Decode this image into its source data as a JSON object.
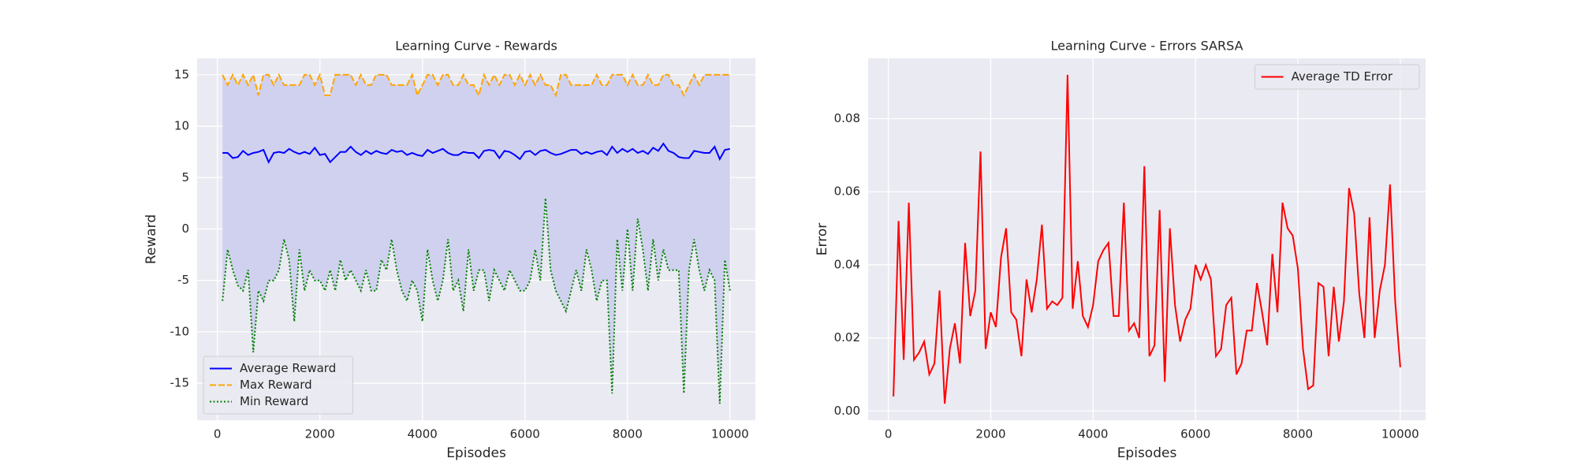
{
  "chart_data": [
    {
      "type": "line",
      "title": "Learning Curve - Rewards",
      "xlabel": "Episodes",
      "ylabel": "Reward",
      "x": [
        100,
        200,
        300,
        400,
        500,
        600,
        700,
        800,
        900,
        1000,
        1100,
        1200,
        1300,
        1400,
        1500,
        1600,
        1700,
        1800,
        1900,
        2000,
        2100,
        2200,
        2300,
        2400,
        2500,
        2600,
        2700,
        2800,
        2900,
        3000,
        3100,
        3200,
        3300,
        3400,
        3500,
        3600,
        3700,
        3800,
        3900,
        4000,
        4100,
        4200,
        4300,
        4400,
        4500,
        4600,
        4700,
        4800,
        4900,
        5000,
        5100,
        5200,
        5300,
        5400,
        5500,
        5600,
        5700,
        5800,
        5900,
        6000,
        6100,
        6200,
        6300,
        6400,
        6500,
        6600,
        6700,
        6800,
        6900,
        7000,
        7100,
        7200,
        7300,
        7400,
        7500,
        7600,
        7700,
        7800,
        7900,
        8000,
        8100,
        8200,
        8300,
        8400,
        8500,
        8600,
        8700,
        8800,
        8900,
        9000,
        9100,
        9200,
        9300,
        9400,
        9500,
        9600,
        9700,
        9800,
        9900,
        10000
      ],
      "series": [
        {
          "name": "Average Reward",
          "color": "#0000ff",
          "linestyle": "solid",
          "values": [
            7.4,
            7.4,
            6.9,
            7.0,
            7.6,
            7.2,
            7.4,
            7.5,
            7.7,
            6.5,
            7.4,
            7.5,
            7.4,
            7.8,
            7.5,
            7.3,
            7.5,
            7.3,
            7.9,
            7.2,
            7.3,
            6.5,
            7.0,
            7.5,
            7.5,
            8.0,
            7.5,
            7.2,
            7.6,
            7.3,
            7.6,
            7.4,
            7.3,
            7.7,
            7.5,
            7.6,
            7.2,
            7.4,
            7.2,
            7.1,
            7.7,
            7.4,
            7.6,
            7.8,
            7.4,
            7.2,
            7.2,
            7.5,
            7.4,
            7.4,
            6.9,
            7.6,
            7.7,
            7.6,
            6.9,
            7.6,
            7.5,
            7.2,
            6.8,
            7.5,
            7.6,
            7.2,
            7.6,
            7.7,
            7.4,
            7.2,
            7.3,
            7.5,
            7.7,
            7.7,
            7.3,
            7.5,
            7.3,
            7.5,
            7.6,
            7.2,
            8.0,
            7.4,
            7.8,
            7.5,
            7.8,
            7.4,
            7.6,
            7.3,
            7.9,
            7.6,
            8.3,
            7.6,
            7.4,
            7.0,
            6.9,
            6.9,
            7.6,
            7.5,
            7.4,
            7.4,
            8.0,
            6.8,
            7.7,
            7.8
          ]
        },
        {
          "name": "Max Reward",
          "color": "#ffa500",
          "linestyle": "dashed",
          "values": [
            15,
            14,
            15,
            14,
            15,
            14,
            15,
            13,
            15,
            15,
            14,
            15,
            14,
            14,
            14,
            14,
            15,
            15,
            14,
            15,
            13,
            13,
            15,
            15,
            15,
            15,
            14,
            15,
            14,
            14,
            15,
            15,
            15,
            14,
            14,
            14,
            14,
            15,
            13,
            14,
            15,
            15,
            14,
            15,
            15,
            14,
            14,
            15,
            14,
            14,
            13,
            15,
            14,
            15,
            14,
            15,
            15,
            14,
            15,
            14,
            15,
            14,
            15,
            14,
            14,
            13,
            15,
            15,
            14,
            14,
            14,
            14,
            14,
            15,
            14,
            14,
            15,
            15,
            15,
            14,
            15,
            14,
            14,
            15,
            14,
            14,
            15,
            15,
            14,
            14,
            13,
            14,
            15,
            14,
            15,
            15,
            15,
            15,
            15,
            15
          ]
        },
        {
          "name": "Min Reward",
          "color": "#008000",
          "linestyle": "dotted",
          "values": [
            -7,
            -2,
            -4,
            -5.5,
            -6,
            -4,
            -12,
            -6,
            -7,
            -5,
            -5,
            -4,
            -1,
            -3,
            -9,
            -2,
            -6,
            -4,
            -5,
            -5,
            -6,
            -4,
            -6,
            -3,
            -5,
            -4,
            -5,
            -6,
            -4,
            -6,
            -6,
            -3,
            -4,
            -1,
            -4,
            -6,
            -7,
            -5,
            -6,
            -9,
            -2,
            -5,
            -7,
            -5,
            -1,
            -6,
            -5,
            -8,
            -2,
            -6,
            -4,
            -4,
            -7,
            -4,
            -5,
            -6,
            -4,
            -5,
            -6,
            -6,
            -5,
            -2,
            -5,
            3,
            -4,
            -6,
            -7,
            -8,
            -6,
            -4,
            -6,
            -2,
            -4,
            -7,
            -5,
            -5,
            -16,
            -1,
            -6,
            0,
            -6,
            1,
            -2,
            -6,
            -1,
            -5,
            -2,
            -4,
            -4,
            -4,
            -16,
            -4,
            -1,
            -4,
            -6,
            -4,
            -5,
            -17,
            -3,
            -6
          ]
        }
      ],
      "fill_color": "#d0d1ef",
      "xlim": [
        -395,
        10495
      ],
      "ylim": [
        -18.6,
        16.6
      ],
      "xticks": [
        0,
        2000,
        4000,
        6000,
        8000,
        10000
      ],
      "yticks": [
        -15,
        -10,
        -5,
        0,
        5,
        10,
        15
      ],
      "grid": true,
      "legend": "lower left"
    },
    {
      "type": "line",
      "title": "Learning Curve - Errors SARSA",
      "xlabel": "Episodes",
      "ylabel": "Error",
      "x": [
        100,
        200,
        300,
        400,
        500,
        600,
        700,
        800,
        900,
        1000,
        1100,
        1200,
        1300,
        1400,
        1500,
        1600,
        1700,
        1800,
        1900,
        2000,
        2100,
        2200,
        2300,
        2400,
        2500,
        2600,
        2700,
        2800,
        2900,
        3000,
        3100,
        3200,
        3300,
        3400,
        3500,
        3600,
        3700,
        3800,
        3900,
        4000,
        4100,
        4200,
        4300,
        4400,
        4500,
        4600,
        4700,
        4800,
        4900,
        5000,
        5100,
        5200,
        5300,
        5400,
        5500,
        5600,
        5700,
        5800,
        5900,
        6000,
        6100,
        6200,
        6300,
        6400,
        6500,
        6600,
        6700,
        6800,
        6900,
        7000,
        7100,
        7200,
        7300,
        7400,
        7500,
        7600,
        7700,
        7800,
        7900,
        8000,
        8100,
        8200,
        8300,
        8400,
        8500,
        8600,
        8700,
        8800,
        8900,
        9000,
        9100,
        9200,
        9300,
        9400,
        9500,
        9600,
        9700,
        9800,
        9900,
        10000
      ],
      "series": [
        {
          "name": "Average TD Error",
          "color": "#ff0000",
          "linestyle": "solid",
          "values": [
            0.004,
            0.052,
            0.014,
            0.057,
            0.014,
            0.016,
            0.019,
            0.01,
            0.013,
            0.033,
            0.002,
            0.017,
            0.024,
            0.013,
            0.046,
            0.026,
            0.033,
            0.071,
            0.017,
            0.027,
            0.023,
            0.042,
            0.05,
            0.027,
            0.025,
            0.015,
            0.036,
            0.027,
            0.036,
            0.051,
            0.028,
            0.03,
            0.029,
            0.031,
            0.092,
            0.028,
            0.041,
            0.026,
            0.023,
            0.029,
            0.041,
            0.044,
            0.046,
            0.026,
            0.026,
            0.057,
            0.022,
            0.024,
            0.02,
            0.067,
            0.015,
            0.018,
            0.055,
            0.008,
            0.05,
            0.029,
            0.019,
            0.025,
            0.028,
            0.04,
            0.036,
            0.04,
            0.036,
            0.015,
            0.017,
            0.029,
            0.031,
            0.01,
            0.013,
            0.022,
            0.022,
            0.035,
            0.027,
            0.018,
            0.043,
            0.027,
            0.057,
            0.05,
            0.048,
            0.039,
            0.017,
            0.006,
            0.007,
            0.035,
            0.034,
            0.015,
            0.034,
            0.019,
            0.03,
            0.061,
            0.054,
            0.032,
            0.02,
            0.053,
            0.02,
            0.033,
            0.04,
            0.062,
            0.03,
            0.012
          ]
        }
      ],
      "xlim": [
        -395,
        10495
      ],
      "ylim": [
        -0.0025,
        0.0965
      ],
      "xticks": [
        0,
        2000,
        4000,
        6000,
        8000,
        10000
      ],
      "yticks": [
        {
          "value": 0,
          "label": "0.00"
        },
        0.02,
        0.04,
        0.06,
        0.08
      ],
      "grid": true,
      "legend": "upper right"
    }
  ]
}
